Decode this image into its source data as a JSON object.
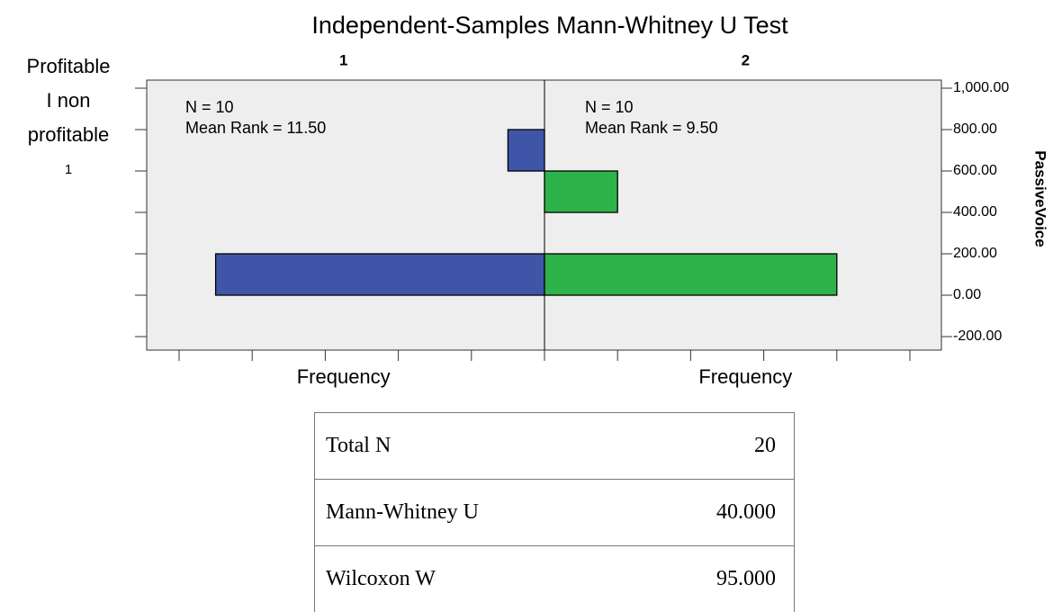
{
  "chart_data": {
    "type": "histogram",
    "title": "Independent-Samples Mann-Whitney U Test",
    "group_label": [
      "Profitable",
      "I non",
      "profitable",
      "1"
    ],
    "xlabel": "Frequency",
    "ylabel": "PassiveVoice",
    "bins": [
      0,
      200,
      400,
      600,
      800
    ],
    "series": [
      {
        "name": "1",
        "color": "#3f56a8",
        "values": [
          9,
          0,
          0,
          1
        ],
        "annotations": [
          "N = 10",
          "Mean Rank = 11.50"
        ]
      },
      {
        "name": "2",
        "color": "#2eb34a",
        "values": [
          8,
          0,
          2,
          0
        ],
        "annotations": [
          "N = 10",
          "Mean Rank = 9.50"
        ]
      }
    ],
    "xlim": [
      0,
      10
    ],
    "xticks": [
      0,
      2,
      4,
      6,
      8,
      10
    ],
    "ylim": [
      -200,
      1000
    ],
    "yticks": [
      {
        "value": -200,
        "label": "-200.00"
      },
      {
        "value": 0,
        "label": "0.00"
      },
      {
        "value": 200,
        "label": "200.00"
      },
      {
        "value": 400,
        "label": "400.00"
      },
      {
        "value": 600,
        "label": "600.00"
      },
      {
        "value": 800,
        "label": "800.00"
      },
      {
        "value": 1000,
        "label": "1,000.00"
      }
    ]
  },
  "table": {
    "rows": [
      [
        "Total N",
        "20"
      ],
      [
        "Mann-Whitney U",
        "40.000"
      ],
      [
        "Wilcoxon W",
        "95.000"
      ]
    ]
  }
}
